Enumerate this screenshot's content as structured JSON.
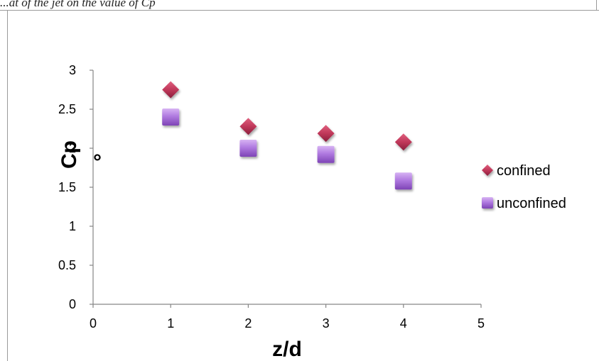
{
  "caption": "...at of the jet on the value of Cp",
  "stray_mark": "°",
  "colors": {
    "confined": "#c0385a",
    "unconfined": "#a86ad8",
    "axis": "#868686"
  },
  "chart_data": {
    "type": "scatter",
    "title": "",
    "xlabel": "z/d",
    "ylabel": "Cp",
    "xlim": [
      0,
      5
    ],
    "ylim": [
      0,
      3
    ],
    "x_ticks": [
      "0",
      "1",
      "2",
      "3",
      "4",
      "5"
    ],
    "y_ticks": [
      "0",
      "0.5",
      "1",
      "1.5",
      "2",
      "2.5",
      "3"
    ],
    "grid": false,
    "legend_position": "right",
    "series": [
      {
        "name": "confined",
        "marker": "diamond",
        "x": [
          1,
          2,
          3,
          4
        ],
        "y": [
          2.75,
          2.28,
          2.19,
          2.08
        ]
      },
      {
        "name": "unconfined",
        "marker": "square",
        "x": [
          1,
          2,
          3,
          4
        ],
        "y": [
          2.4,
          2.0,
          1.92,
          1.58
        ]
      }
    ]
  }
}
